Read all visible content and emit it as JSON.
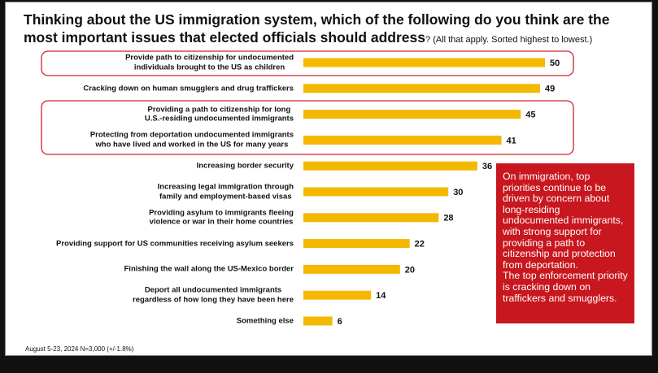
{
  "chart_data": {
    "type": "bar",
    "orientation": "horizontal",
    "title": "Thinking about the US immigration system, which of the following do you think are the most important issues that elected officials should address",
    "subtitle": "? (All that apply. Sorted highest to lowest.)",
    "categories": [
      "Provide path to citizenship for undocumented\nindividuals brought to the US as children",
      "Cracking down on human smugglers and drug traffickers",
      "Providing a path to citizenship for long\nU.S.-residing undocumented immigrants",
      "Protecting from deportation undocumented immigrants\nwho have lived and worked in the US for many years",
      "Increasing border security",
      "Increasing legal immigration through\nfamily and employment-based visas",
      "Providing asylum to immigrants fleeing\nviolence or war in their home countries",
      "Providing support for US communities receiving asylum seekers",
      "Finishing the wall along the US-Mexico border",
      "Deport all undocumented immigrants\nregardless of how long they have been here",
      "Something else"
    ],
    "values": [
      50,
      49,
      45,
      41,
      36,
      30,
      28,
      22,
      20,
      14,
      6
    ],
    "color": "#f5b800",
    "annotation": "On immigration, top\npriorities continue to be\ndriven by concern about\nlong-residing\nundocumented immigrants,\nwith strong support for\nproviding a path to\ncitizenship and protection\nfrom deportation.\nThe top enforcement priority\nis cracking down on\ntraffickers and smugglers.",
    "footnote": "August 5-23, 2024   N=3,000 (+/-1.8%)"
  }
}
